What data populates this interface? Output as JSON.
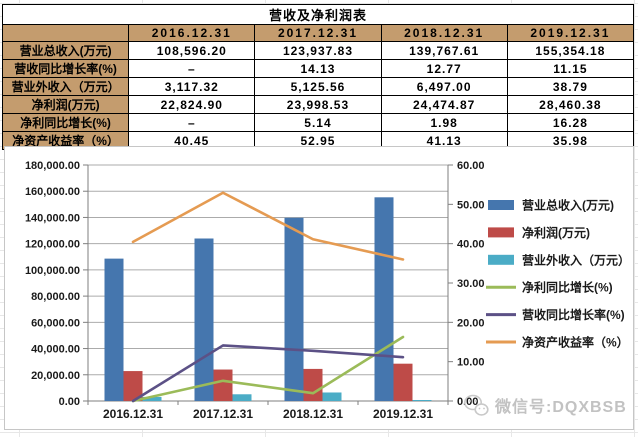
{
  "table": {
    "title": "营收及净利润表",
    "header_bg": "#C49C6E",
    "columns": [
      "",
      "2016.12.31",
      "2017.12.31",
      "2018.12.31",
      "2019.12.31"
    ],
    "rows": [
      {
        "label": "营业总收入(万元)",
        "values": [
          "108,596.20",
          "123,937.83",
          "139,767.61",
          "155,354.18"
        ]
      },
      {
        "label": "营收同比增长率(%)",
        "values": [
          "–",
          "14.13",
          "12.77",
          "11.15"
        ]
      },
      {
        "label": "营业外收入（万元）",
        "values": [
          "3,117.32",
          "5,125.56",
          "6,497.00",
          "38.79"
        ]
      },
      {
        "label": "净利润(万元)",
        "values": [
          "22,824.90",
          "23,998.53",
          "24,474.87",
          "28,460.38"
        ]
      },
      {
        "label": "净利同比增长(%)",
        "values": [
          "–",
          "5.14",
          "1.98",
          "16.28"
        ]
      },
      {
        "label": "净资产收益率（%）",
        "values": [
          "40.45",
          "52.95",
          "41.13",
          "35.98"
        ]
      }
    ]
  },
  "chart_data": {
    "type": "bar",
    "subtype": "combo-bar-line-dual-axis",
    "categories": [
      "2016.12.31",
      "2017.12.31",
      "2018.12.31",
      "2019.12.31"
    ],
    "series": [
      {
        "name": "营业总收入(万元)",
        "type": "bar",
        "axis": "left",
        "color": "#4576AE",
        "values": [
          108596.2,
          123937.83,
          139767.61,
          155354.18
        ]
      },
      {
        "name": "净利润(万元)",
        "type": "bar",
        "axis": "left",
        "color": "#BE4B48",
        "values": [
          22824.9,
          23998.53,
          24474.87,
          28460.38
        ]
      },
      {
        "name": "营业外收入（万元）",
        "type": "bar",
        "axis": "left",
        "color": "#4BACC6",
        "values": [
          3117.32,
          5125.56,
          6497.0,
          38.79
        ]
      },
      {
        "name": "净利同比增长(%)",
        "type": "line",
        "axis": "right",
        "color": "#9BBB59",
        "values": [
          0,
          5.14,
          1.98,
          16.28
        ]
      },
      {
        "name": "营收同比增长率(%)",
        "type": "line",
        "axis": "right",
        "color": "#5C5186",
        "values": [
          0,
          14.13,
          12.77,
          11.15
        ]
      },
      {
        "name": "净资产收益率（%）",
        "type": "line",
        "axis": "right",
        "color": "#E59B52",
        "values": [
          40.45,
          52.95,
          41.13,
          35.98
        ]
      }
    ],
    "left_axis": {
      "min": 0,
      "max": 180000,
      "step": 20000,
      "tick_format": "#,##0.00"
    },
    "right_axis": {
      "min": 0,
      "max": 60,
      "step": 10,
      "tick_format": "0.00"
    },
    "grid": true,
    "grid_color": "#ABABAB",
    "axis_color": "#7F7F7F",
    "label_color": "#1a1a1a",
    "legend_position": "right"
  },
  "watermark": {
    "icon": "wechat-icon",
    "text": "微信号:DQXBSB"
  }
}
